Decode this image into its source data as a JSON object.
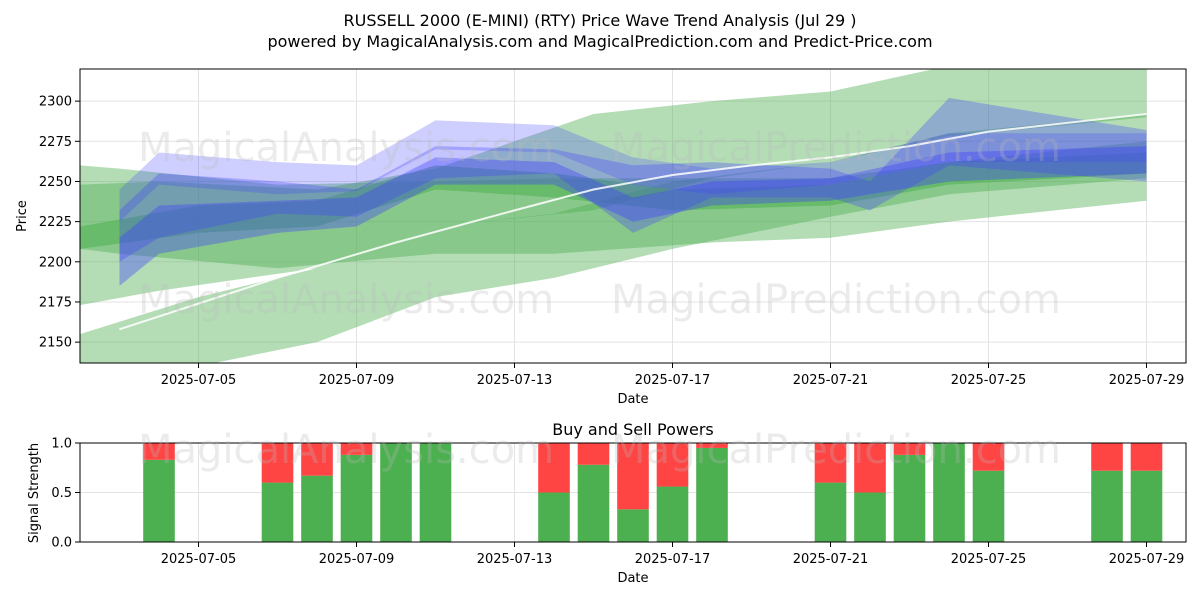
{
  "header": {
    "title": "RUSSELL 2000 (E-MINI) (RTY) Price Wave Trend Analysis (Jul 29 )",
    "subtitle": "powered by MagicalAnalysis.com and MagicalPrediction.com and Predict-Price.com"
  },
  "watermarks": {
    "left": "MagicalAnalysis.com",
    "right": "MagicalPrediction.com"
  },
  "colors": {
    "green_band": "#4caf50",
    "blue_band": "#3f3fff",
    "buy": "#4caf50",
    "sell": "#ff4444",
    "trend_line": "#ffffff"
  },
  "chart_data": [
    {
      "type": "area",
      "ylabel": "Price",
      "xlabel": "Date",
      "x_range": [
        "2025-07-02",
        "2025-07-30"
      ],
      "ylim": [
        2137,
        2320
      ],
      "y_ticks": [
        2150,
        2175,
        2200,
        2225,
        2250,
        2275,
        2300
      ],
      "x_ticks": [
        "2025-07-05",
        "2025-07-09",
        "2025-07-13",
        "2025-07-17",
        "2025-07-21",
        "2025-07-25",
        "2025-07-29"
      ],
      "grid": true,
      "series": [
        {
          "color": "green",
          "x": [
            "2025-07-02",
            "2025-07-03",
            "2025-07-07",
            "2025-07-11",
            "2025-07-14",
            "2025-07-18",
            "2025-07-21",
            "2025-07-24",
            "2025-07-29"
          ],
          "upper": [
            2260,
            2258,
            2248,
            2250,
            2252,
            2252,
            2252,
            2262,
            2275
          ],
          "lower": [
            2208,
            2205,
            2196,
            2205,
            2205,
            2212,
            2215,
            2225,
            2238
          ]
        },
        {
          "color": "green",
          "x": [
            "2025-07-02",
            "2025-07-04",
            "2025-07-08",
            "2025-07-11",
            "2025-07-15",
            "2025-07-18",
            "2025-07-21",
            "2025-07-24",
            "2025-07-29"
          ],
          "upper": [
            2248,
            2250,
            2245,
            2258,
            2292,
            2300,
            2306,
            2322,
            2322
          ],
          "lower": [
            2173,
            2182,
            2196,
            2222,
            2232,
            2252,
            2262,
            2278,
            2290
          ]
        },
        {
          "color": "green",
          "x": [
            "2025-07-02",
            "2025-07-05",
            "2025-07-08",
            "2025-07-11",
            "2025-07-14",
            "2025-07-17",
            "2025-07-21",
            "2025-07-24",
            "2025-07-29"
          ],
          "upper": [
            2155,
            2178,
            2196,
            2222,
            2230,
            2250,
            2262,
            2280,
            2292
          ],
          "lower": [
            2130,
            2135,
            2150,
            2178,
            2190,
            2208,
            2228,
            2242,
            2252
          ]
        },
        {
          "color": "green",
          "x": [
            "2025-07-02",
            "2025-07-05",
            "2025-07-08",
            "2025-07-11",
            "2025-07-14",
            "2025-07-17",
            "2025-07-21",
            "2025-07-24",
            "2025-07-29"
          ],
          "upper": [
            2222,
            2235,
            2238,
            2260,
            2255,
            2245,
            2248,
            2262,
            2268
          ],
          "lower": [
            2208,
            2218,
            2222,
            2245,
            2240,
            2232,
            2235,
            2248,
            2255
          ]
        },
        {
          "color": "blue",
          "x": [
            "2025-07-03",
            "2025-07-04",
            "2025-07-07",
            "2025-07-09",
            "2025-07-11",
            "2025-07-14",
            "2025-07-16",
            "2025-07-18",
            "2025-07-21",
            "2025-07-24",
            "2025-07-29"
          ],
          "upper": [
            2245,
            2268,
            2262,
            2260,
            2288,
            2285,
            2265,
            2258,
            2262,
            2280,
            2280
          ],
          "lower": [
            2225,
            2248,
            2242,
            2244,
            2270,
            2268,
            2248,
            2242,
            2248,
            2262,
            2262
          ]
        },
        {
          "color": "blue",
          "x": [
            "2025-07-03",
            "2025-07-04",
            "2025-07-07",
            "2025-07-09",
            "2025-07-11",
            "2025-07-14",
            "2025-07-16",
            "2025-07-18",
            "2025-07-21",
            "2025-07-22",
            "2025-07-24",
            "2025-07-29"
          ],
          "upper": [
            2232,
            2255,
            2250,
            2245,
            2272,
            2270,
            2260,
            2262,
            2258,
            2250,
            2302,
            2282
          ],
          "lower": [
            2200,
            2215,
            2230,
            2228,
            2252,
            2255,
            2218,
            2240,
            2240,
            2232,
            2260,
            2250
          ]
        },
        {
          "color": "blue",
          "x": [
            "2025-07-03",
            "2025-07-04",
            "2025-07-07",
            "2025-07-09",
            "2025-07-11",
            "2025-07-14",
            "2025-07-16",
            "2025-07-18",
            "2025-07-21",
            "2025-07-24",
            "2025-07-29"
          ],
          "upper": [
            2215,
            2235,
            2238,
            2240,
            2265,
            2262,
            2240,
            2250,
            2252,
            2268,
            2272
          ],
          "lower": [
            2185,
            2205,
            2218,
            2222,
            2248,
            2248,
            2225,
            2235,
            2238,
            2250,
            2255
          ]
        }
      ],
      "trend_line": {
        "x": [
          "2025-07-03",
          "2025-07-07",
          "2025-07-10",
          "2025-07-13",
          "2025-07-15",
          "2025-07-17",
          "2025-07-19",
          "2025-07-21",
          "2025-07-23",
          "2025-07-25",
          "2025-07-29"
        ],
        "y": [
          2158,
          2190,
          2212,
          2232,
          2245,
          2254,
          2260,
          2265,
          2272,
          2281,
          2292
        ]
      }
    },
    {
      "type": "bar",
      "title": "Buy and Sell Powers",
      "ylabel": "Signal Strength",
      "xlabel": "Date",
      "ylim": [
        0,
        1.0
      ],
      "y_ticks": [
        0.0,
        0.5,
        1.0
      ],
      "x_ticks": [
        "2025-07-05",
        "2025-07-09",
        "2025-07-13",
        "2025-07-17",
        "2025-07-21",
        "2025-07-25",
        "2025-07-29"
      ],
      "x_range": [
        "2025-07-02",
        "2025-07-30"
      ],
      "dates": [
        "2025-07-04",
        "2025-07-07",
        "2025-07-08",
        "2025-07-09",
        "2025-07-10",
        "2025-07-11",
        "2025-07-14",
        "2025-07-15",
        "2025-07-16",
        "2025-07-17",
        "2025-07-18",
        "2025-07-21",
        "2025-07-22",
        "2025-07-23",
        "2025-07-24",
        "2025-07-25",
        "2025-07-28",
        "2025-07-29"
      ],
      "buy": [
        0.83,
        0.6,
        0.67,
        0.88,
        1.0,
        1.0,
        0.5,
        0.78,
        0.33,
        0.56,
        0.95,
        0.6,
        0.5,
        0.88,
        1.0,
        0.72,
        0.72,
        0.72
      ],
      "sell": [
        0.17,
        0.4,
        0.33,
        0.12,
        0.0,
        0.0,
        0.5,
        0.22,
        0.67,
        0.44,
        0.05,
        0.4,
        0.5,
        0.12,
        0.0,
        0.28,
        0.28,
        0.28
      ]
    }
  ]
}
